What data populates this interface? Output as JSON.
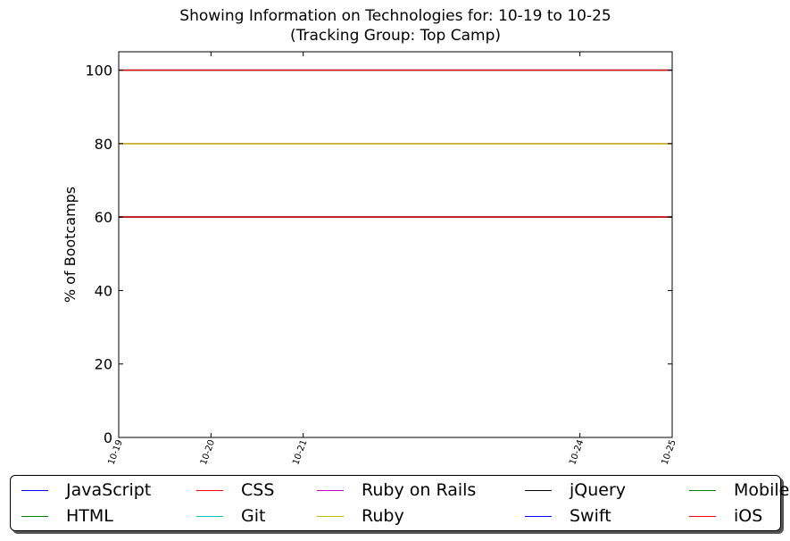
{
  "chart_data": {
    "type": "line",
    "title": "Showing Information on Technologies for: 10-19 to 10-25",
    "subtitle": "(Tracking Group: Top Camp)",
    "xlabel": "",
    "ylabel": "% of Bootcamps",
    "x": [
      "10-19",
      "10-20",
      "10-21",
      "10-24",
      "10-25"
    ],
    "x_day_index": [
      19,
      20,
      21,
      24,
      25
    ],
    "xlim": [
      19,
      25
    ],
    "ylim": [
      0,
      105
    ],
    "yticks": [
      0,
      20,
      40,
      60,
      80,
      100
    ],
    "grid": false,
    "legend_position": "below",
    "series": [
      {
        "name": "JavaScript",
        "color": "#0000ff",
        "values": [
          100,
          100,
          100,
          100,
          100
        ]
      },
      {
        "name": "HTML",
        "color": "#008000",
        "values": [
          100,
          100,
          100,
          100,
          100
        ]
      },
      {
        "name": "CSS",
        "color": "#ff0000",
        "values": [
          100,
          100,
          100,
          100,
          100
        ]
      },
      {
        "name": "Git",
        "color": "#00bfbf",
        "values": [
          60,
          60,
          60,
          60,
          60
        ]
      },
      {
        "name": "Ruby on Rails",
        "color": "#bf00bf",
        "values": [
          80,
          80,
          80,
          80,
          80
        ]
      },
      {
        "name": "Ruby",
        "color": "#bfbf00",
        "values": [
          80,
          80,
          80,
          80,
          80
        ]
      },
      {
        "name": "jQuery",
        "color": "#000000",
        "values": [
          60,
          60,
          60,
          60,
          60
        ]
      },
      {
        "name": "Swift",
        "color": "#0000ff",
        "values": [
          60,
          60,
          60,
          60,
          60
        ]
      },
      {
        "name": "Mobile",
        "color": "#008000",
        "values": [
          60,
          60,
          60,
          60,
          60
        ]
      },
      {
        "name": "iOS",
        "color": "#ff0000",
        "values": [
          60,
          60,
          60,
          60,
          60
        ]
      }
    ]
  }
}
